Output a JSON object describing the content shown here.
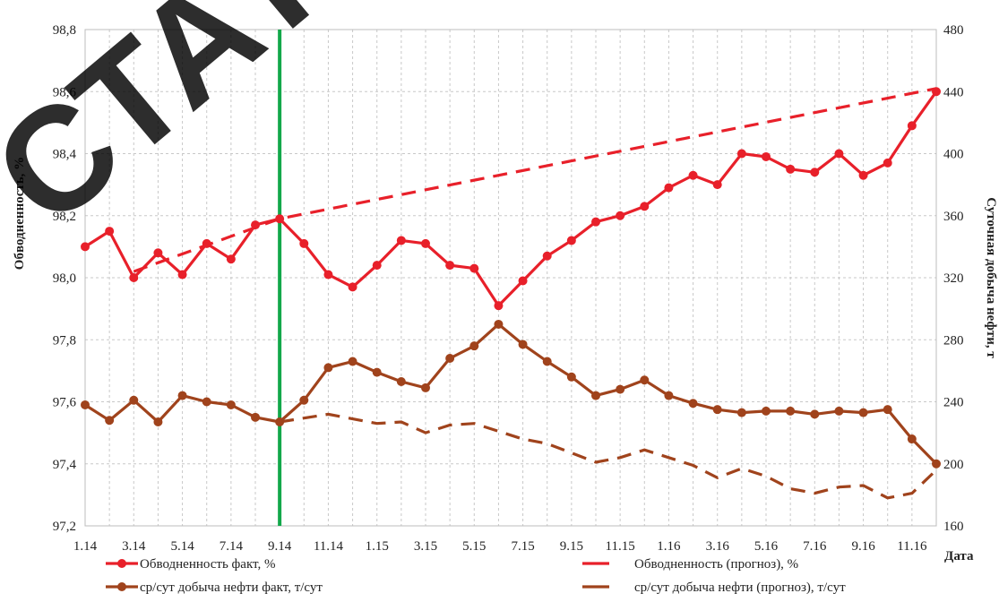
{
  "chart_data": {
    "type": "line",
    "title": "",
    "xlabel": "Дата",
    "ylabel_left": "Обводненность, %",
    "ylabel_right": "Суточная добыча нефти, т",
    "y_left": {
      "min": 97.2,
      "max": 98.8,
      "step": 0.2,
      "ticks": [
        "97,2",
        "97,4",
        "97,6",
        "97,8",
        "98,0",
        "98,2",
        "98,4",
        "98,6",
        "98,8"
      ]
    },
    "y_right": {
      "min": 160,
      "max": 480,
      "step": 40,
      "ticks": [
        "160",
        "200",
        "240",
        "280",
        "320",
        "360",
        "400",
        "440",
        "480"
      ]
    },
    "x_tick_labels": [
      "1.14",
      "3.14",
      "5.14",
      "7.14",
      "9.14",
      "11.14",
      "1.15",
      "3.15",
      "5.15",
      "7.15",
      "9.15",
      "11.15",
      "1.16",
      "3.16",
      "5.16",
      "7.16",
      "9.16",
      "11.16"
    ],
    "x_count": 36,
    "vertical_marker_index": 8,
    "grid": true,
    "legend_position": "bottom",
    "colors": {
      "water_cut": "#e8202a",
      "oil": "#a0431c",
      "marker": "#12a84a",
      "grid": "#c8c8c8"
    },
    "series": [
      {
        "name": "Обводненность факт, %",
        "axis": "left",
        "style": "solid-markers",
        "x": [
          0,
          1,
          2,
          3,
          4,
          5,
          6,
          7,
          8,
          9,
          10,
          11,
          12,
          13,
          14,
          15,
          16,
          17,
          18,
          19,
          20,
          21,
          22,
          23,
          24,
          25,
          26,
          27,
          28,
          29,
          30,
          31,
          32,
          33,
          34,
          35
        ],
        "values": [
          98.1,
          98.15,
          98.0,
          98.08,
          98.01,
          98.11,
          98.06,
          98.17,
          98.19,
          98.11,
          98.01,
          97.97,
          98.04,
          98.12,
          98.11,
          98.04,
          98.03,
          97.91,
          97.99,
          98.07,
          98.12,
          98.18,
          98.2,
          98.23,
          98.29,
          98.33,
          98.3,
          98.4,
          98.39,
          98.35,
          98.34,
          98.4,
          98.33,
          98.37,
          98.49,
          98.6
        ]
      },
      {
        "name": "Обводненность (прогноз), %",
        "axis": "left",
        "style": "dashed",
        "x": [
          2,
          8,
          35
        ],
        "values": [
          98.02,
          98.19,
          98.61
        ]
      },
      {
        "name": "ср/сут добыча нефти факт, т/сут",
        "axis": "right",
        "style": "solid-markers",
        "x": [
          0,
          1,
          2,
          3,
          4,
          5,
          6,
          7,
          8,
          9,
          10,
          11,
          12,
          13,
          14,
          15,
          16,
          17,
          18,
          19,
          20,
          21,
          22,
          23,
          24,
          25,
          26,
          27,
          28,
          29,
          30,
          31,
          32,
          33,
          34,
          35
        ],
        "values": [
          238,
          228,
          241,
          227,
          244,
          240,
          238,
          230,
          227,
          241,
          262,
          266,
          259,
          253,
          249,
          268,
          276,
          290,
          277,
          266,
          256,
          244,
          248,
          254,
          244,
          239,
          235,
          233,
          234,
          234,
          232,
          234,
          233,
          235,
          216,
          200
        ]
      },
      {
        "name": "ср/сут добыча нефти (прогноз), т/сут",
        "axis": "right",
        "style": "dashed",
        "x": [
          8,
          10,
          12,
          13,
          14,
          15,
          16,
          17,
          18,
          19,
          20,
          21,
          22,
          23,
          24,
          25,
          26,
          27,
          28,
          29,
          30,
          31,
          32,
          33,
          34,
          35
        ],
        "values": [
          227,
          232,
          226,
          227,
          220,
          225,
          226,
          221,
          216,
          213,
          207,
          201,
          204,
          209,
          204,
          199,
          191,
          197,
          192,
          184,
          181,
          185,
          186,
          178,
          181,
          196
        ]
      }
    ]
  },
  "watermark": {
    "text": "СТАТ"
  }
}
